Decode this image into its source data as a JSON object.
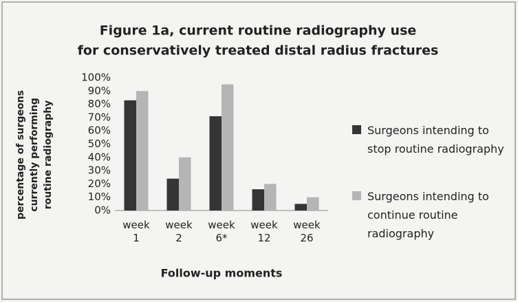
{
  "chart_data": {
    "type": "bar",
    "title": [
      "Figure 1a, current routine radiography use",
      "for conservatively treated distal radius fractures"
    ],
    "x_label": "Follow-up moments",
    "y_label": "percentage of surgeons currently performing routine radiography",
    "categories": [
      "week 1",
      "week 2",
      "week 6*",
      "week 12",
      "week 26"
    ],
    "series": [
      {
        "name": "Surgeons intending to stop routine radiography",
        "color": "#353535",
        "values": [
          83,
          24,
          71,
          16,
          5
        ]
      },
      {
        "name": "Surgeons intending to continue routine radiography",
        "color": "#b5b5b5",
        "values": [
          90,
          40,
          95,
          20,
          10
        ]
      }
    ],
    "ylim": [
      0,
      100
    ],
    "yticks": [
      {
        "value": 0,
        "label": "0%"
      },
      {
        "value": 10,
        "label": "10%"
      },
      {
        "value": 20,
        "label": "20%"
      },
      {
        "value": 30,
        "label": "30%"
      },
      {
        "value": 40,
        "label": "40%"
      },
      {
        "value": 50,
        "label": "50%"
      },
      {
        "value": 60,
        "label": "60%"
      },
      {
        "value": 70,
        "label": "70%"
      },
      {
        "value": 80,
        "label": "80%"
      },
      {
        "value": 90,
        "label": "90%"
      },
      {
        "value": 100,
        "label": "100%"
      }
    ],
    "grid": false,
    "legend": "right"
  }
}
